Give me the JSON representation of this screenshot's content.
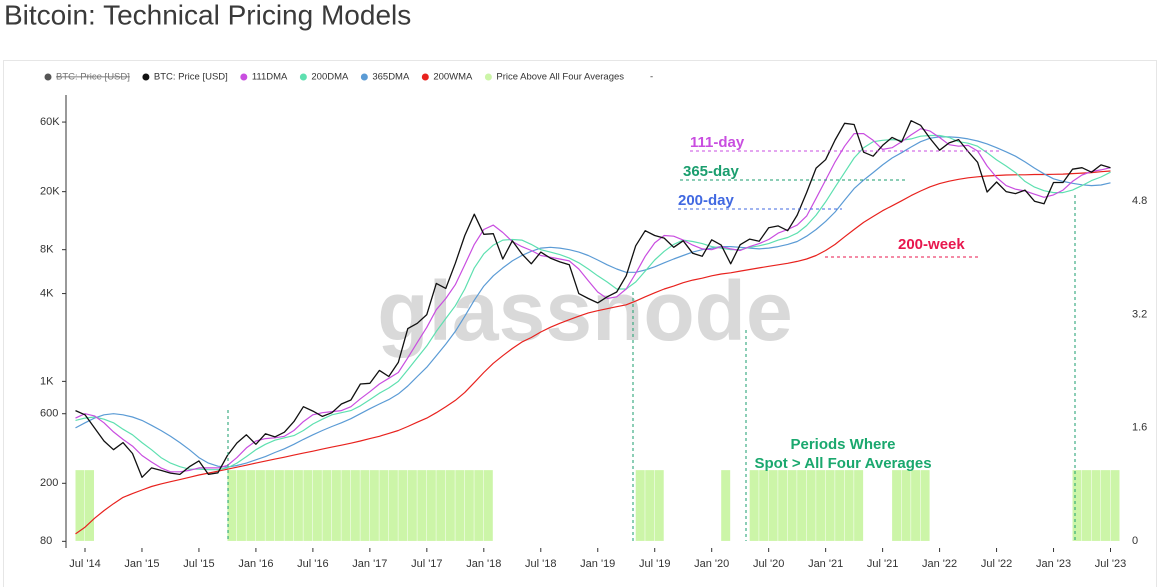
{
  "chart_data": {
    "type": "line",
    "title": "Bitcoin: Technical Pricing Models",
    "watermark": "glassnode",
    "log_y": true,
    "legend_hidden": [
      "BTC: Price [USD]"
    ],
    "legend_trailing": "-",
    "annotations": [
      "111-day",
      "365-day",
      "200-day",
      "200-week",
      "Periods Where",
      "Spot > All Four Averages"
    ],
    "x": [
      "2014-06",
      "2014-07",
      "2014-08",
      "2014-09",
      "2014-10",
      "2014-11",
      "2014-12",
      "2015-01",
      "2015-02",
      "2015-03",
      "2015-04",
      "2015-05",
      "2015-06",
      "2015-07",
      "2015-08",
      "2015-09",
      "2015-10",
      "2015-11",
      "2015-12",
      "2016-01",
      "2016-02",
      "2016-03",
      "2016-04",
      "2016-05",
      "2016-06",
      "2016-07",
      "2016-08",
      "2016-09",
      "2016-10",
      "2016-11",
      "2016-12",
      "2017-01",
      "2017-02",
      "2017-03",
      "2017-04",
      "2017-05",
      "2017-06",
      "2017-07",
      "2017-08",
      "2017-09",
      "2017-10",
      "2017-11",
      "2017-12",
      "2018-01",
      "2018-02",
      "2018-03",
      "2018-04",
      "2018-05",
      "2018-06",
      "2018-07",
      "2018-08",
      "2018-09",
      "2018-10",
      "2018-11",
      "2018-12",
      "2019-01",
      "2019-02",
      "2019-03",
      "2019-04",
      "2019-05",
      "2019-06",
      "2019-07",
      "2019-08",
      "2019-09",
      "2019-10",
      "2019-11",
      "2019-12",
      "2020-01",
      "2020-02",
      "2020-03",
      "2020-04",
      "2020-05",
      "2020-06",
      "2020-07",
      "2020-08",
      "2020-09",
      "2020-10",
      "2020-11",
      "2020-12",
      "2021-01",
      "2021-02",
      "2021-03",
      "2021-04",
      "2021-05",
      "2021-06",
      "2021-07",
      "2021-08",
      "2021-09",
      "2021-10",
      "2021-11",
      "2021-12",
      "2022-01",
      "2022-02",
      "2022-03",
      "2022-04",
      "2022-05",
      "2022-06",
      "2022-07",
      "2022-08",
      "2022-09",
      "2022-10",
      "2022-11",
      "2022-12",
      "2023-01",
      "2023-02",
      "2023-03",
      "2023-04",
      "2023-05",
      "2023-06",
      "2023-07"
    ],
    "series": [
      {
        "name": "Price Above All Four Averages",
        "color": "#ccf5a8",
        "axis": "y2",
        "kind": "bar",
        "values": [
          1,
          1,
          0,
          0,
          0,
          0,
          0,
          0,
          0,
          0,
          0,
          0,
          0,
          0,
          0,
          0,
          1,
          1,
          1,
          1,
          1,
          1,
          1,
          1,
          1,
          1,
          1,
          1,
          1,
          1,
          1,
          1,
          1,
          1,
          1,
          1,
          1,
          1,
          1,
          1,
          1,
          1,
          1,
          1,
          0,
          0,
          0,
          0,
          0,
          0,
          0,
          0,
          0,
          0,
          0,
          0,
          0,
          0,
          0,
          1,
          1,
          1,
          0,
          0,
          0,
          0,
          0,
          0,
          1,
          0,
          0,
          1,
          1,
          1,
          1,
          1,
          1,
          1,
          1,
          1,
          1,
          1,
          1,
          0,
          0,
          0,
          1,
          1,
          1,
          1,
          0,
          0,
          0,
          0,
          0,
          0,
          0,
          0,
          0,
          0,
          0,
          0,
          0,
          0,
          0,
          1,
          1,
          1,
          1,
          1
        ]
      },
      {
        "name": "200WMA",
        "color": "#e8221e",
        "kind": "line",
        "values": [
          90,
          100,
          115,
          130,
          145,
          160,
          170,
          180,
          190,
          198,
          205,
          212,
          220,
          228,
          235,
          242,
          250,
          258,
          266,
          275,
          284,
          293,
          302,
          312,
          322,
          332,
          343,
          354,
          365,
          377,
          390,
          405,
          420,
          440,
          460,
          490,
          525,
          560,
          610,
          670,
          740,
          840,
          980,
          1150,
          1330,
          1500,
          1680,
          1860,
          2000,
          2180,
          2350,
          2500,
          2650,
          2800,
          2950,
          3050,
          3150,
          3250,
          3350,
          3550,
          3800,
          4050,
          4300,
          4500,
          4750,
          4950,
          5100,
          5300,
          5450,
          5550,
          5700,
          5850,
          6000,
          6150,
          6300,
          6450,
          6650,
          6900,
          7300,
          7900,
          8700,
          9800,
          11000,
          12300,
          13500,
          14800,
          16000,
          17300,
          18800,
          20200,
          21600,
          22700,
          23600,
          24300,
          24900,
          25300,
          25600,
          25800,
          26000,
          26100,
          26100,
          26200,
          26200,
          26300,
          26400,
          26600,
          26800,
          27000,
          27400,
          27700
        ]
      },
      {
        "name": "365DMA",
        "color": "#5b9bd5",
        "kind": "line",
        "values": [
          480,
          520,
          560,
          590,
          600,
          590,
          570,
          540,
          500,
          460,
          420,
          380,
          340,
          300,
          275,
          262,
          258,
          265,
          275,
          290,
          305,
          325,
          345,
          370,
          400,
          430,
          460,
          490,
          520,
          555,
          600,
          650,
          700,
          750,
          820,
          930,
          1080,
          1250,
          1500,
          1800,
          2200,
          2800,
          3600,
          4500,
          5300,
          6000,
          6700,
          7300,
          7800,
          8200,
          8300,
          8200,
          8000,
          7700,
          7300,
          6800,
          6300,
          5900,
          5600,
          5600,
          5800,
          6100,
          6500,
          6900,
          7300,
          7700,
          8000,
          8200,
          8400,
          8400,
          8300,
          8200,
          8100,
          8200,
          8400,
          8700,
          9100,
          9900,
          11000,
          12500,
          14500,
          17500,
          21000,
          24000,
          27000,
          30500,
          34000,
          37000,
          40500,
          44000,
          46500,
          47500,
          47500,
          47000,
          46000,
          44500,
          42500,
          40000,
          37500,
          35000,
          32000,
          29000,
          26500,
          24500,
          23500,
          22800,
          22300,
          22000,
          22200,
          23000
        ]
      },
      {
        "name": "200DMA",
        "color": "#5ee0b0",
        "kind": "line",
        "values": [
          540,
          560,
          570,
          550,
          520,
          470,
          430,
          380,
          340,
          300,
          275,
          260,
          250,
          250,
          248,
          248,
          255,
          275,
          305,
          340,
          370,
          395,
          410,
          425,
          460,
          510,
          550,
          590,
          610,
          630,
          680,
          750,
          830,
          900,
          1000,
          1200,
          1450,
          1750,
          2200,
          2700,
          3300,
          4300,
          6000,
          7500,
          8600,
          9300,
          9400,
          9300,
          8700,
          8000,
          7700,
          7400,
          7000,
          6500,
          5900,
          5300,
          4800,
          4300,
          4300,
          4800,
          5700,
          6800,
          7800,
          8700,
          9300,
          9100,
          8800,
          8400,
          8200,
          8000,
          8000,
          8300,
          8500,
          8800,
          9300,
          9700,
          10400,
          11700,
          13800,
          17000,
          21500,
          27000,
          34000,
          40000,
          44000,
          45000,
          45500,
          45000,
          46000,
          48000,
          48500,
          48500,
          47000,
          44000,
          43000,
          41000,
          37000,
          33000,
          30000,
          27000,
          23500,
          21500,
          20300,
          19700,
          19700,
          20500,
          22000,
          23800,
          25200,
          27200
        ]
      },
      {
        "name": "111DMA",
        "color": "#c94ee0",
        "kind": "line",
        "values": [
          560,
          600,
          580,
          520,
          450,
          400,
          360,
          310,
          280,
          255,
          240,
          240,
          245,
          255,
          255,
          255,
          265,
          300,
          350,
          390,
          405,
          410,
          420,
          460,
          530,
          590,
          610,
          620,
          630,
          670,
          760,
          850,
          960,
          1050,
          1150,
          1450,
          1850,
          2350,
          3100,
          3700,
          4600,
          6300,
          8700,
          11000,
          11800,
          10500,
          9100,
          8400,
          7900,
          7300,
          7100,
          6900,
          6700,
          5900,
          4900,
          4100,
          3700,
          3800,
          4300,
          5500,
          7200,
          8900,
          10000,
          9900,
          9300,
          8600,
          8100,
          8000,
          8400,
          8100,
          7900,
          8400,
          8800,
          9400,
          10400,
          11000,
          11800,
          13600,
          18000,
          24000,
          32000,
          41000,
          50000,
          50000,
          45000,
          39000,
          40000,
          44000,
          49000,
          54000,
          52000,
          47000,
          42000,
          41000,
          41500,
          38000,
          30000,
          25000,
          22000,
          20800,
          20200,
          19200,
          18300,
          19000,
          20500,
          23500,
          26000,
          27500,
          28200,
          29200
        ]
      },
      {
        "name": "BTC: Price [USD]",
        "color": "#111111",
        "kind": "line",
        "values": [
          630,
          590,
          480,
          390,
          340,
          380,
          320,
          220,
          255,
          245,
          235,
          230,
          260,
          285,
          230,
          236,
          310,
          378,
          430,
          370,
          437,
          416,
          448,
          530,
          670,
          625,
          575,
          610,
          700,
          745,
          960,
          970,
          1190,
          1080,
          1350,
          2300,
          2500,
          2870,
          4700,
          4340,
          6450,
          10000,
          14000,
          10200,
          10300,
          6900,
          9200,
          7500,
          6400,
          7700,
          7000,
          6600,
          6300,
          4000,
          3700,
          3450,
          3800,
          4100,
          5300,
          8500,
          10800,
          10000,
          9600,
          8300,
          9200,
          7550,
          7200,
          9350,
          8600,
          6400,
          8650,
          9450,
          9150,
          11300,
          11650,
          10800,
          13800,
          19700,
          29000,
          33100,
          45200,
          58800,
          57700,
          37300,
          35000,
          41500,
          47100,
          43800,
          61300,
          57000,
          46300,
          38500,
          43200,
          45500,
          37700,
          31800,
          19900,
          23300,
          20000,
          19400,
          20500,
          17200,
          16500,
          23100,
          23100,
          28500,
          29200,
          27200,
          30500,
          29200
        ]
      }
    ],
    "xlim": [
      "2014-05",
      "2023-08"
    ],
    "xticks": [
      {
        "value": "2014-07",
        "label": "Jul '14"
      },
      {
        "value": "2015-01",
        "label": "Jan '15"
      },
      {
        "value": "2015-07",
        "label": "Jul '15"
      },
      {
        "value": "2016-01",
        "label": "Jan '16"
      },
      {
        "value": "2016-07",
        "label": "Jul '16"
      },
      {
        "value": "2017-01",
        "label": "Jan '17"
      },
      {
        "value": "2017-07",
        "label": "Jul '17"
      },
      {
        "value": "2018-01",
        "label": "Jan '18"
      },
      {
        "value": "2018-07",
        "label": "Jul '18"
      },
      {
        "value": "2019-01",
        "label": "Jan '19"
      },
      {
        "value": "2019-07",
        "label": "Jul '19"
      },
      {
        "value": "2020-01",
        "label": "Jan '20"
      },
      {
        "value": "2020-07",
        "label": "Jul '20"
      },
      {
        "value": "2021-01",
        "label": "Jan '21"
      },
      {
        "value": "2021-07",
        "label": "Jul '21"
      },
      {
        "value": "2022-01",
        "label": "Jan '22"
      },
      {
        "value": "2022-07",
        "label": "Jul '22"
      },
      {
        "value": "2023-01",
        "label": "Jan '23"
      },
      {
        "value": "2023-07",
        "label": "Jul '23"
      }
    ],
    "ylim": [
      72,
      92000
    ],
    "yticks": [
      80,
      200,
      600,
      {
        "value": 1000,
        "label": "1K"
      },
      {
        "value": 4000,
        "label": "4K"
      },
      {
        "value": 8000,
        "label": "8K"
      },
      {
        "value": 20000,
        "label": "20K"
      },
      {
        "value": 60000,
        "label": "60K"
      }
    ],
    "y2lim": [
      -0.1,
      6.3
    ],
    "y2ticks": [
      0,
      1.6,
      3.2,
      4.8
    ]
  }
}
